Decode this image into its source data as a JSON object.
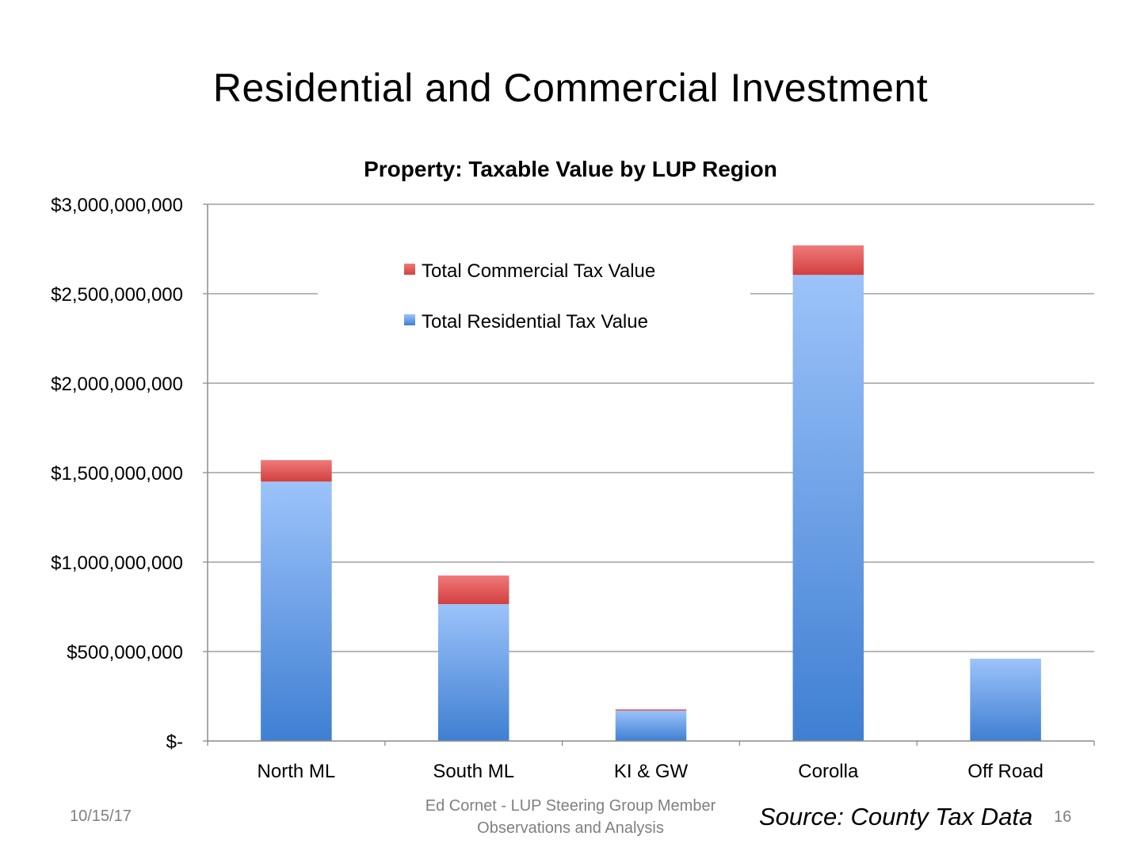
{
  "slide": {
    "title": "Residential and Commercial Investment",
    "date": "10/15/17",
    "author_line1": "Ed Cornet - LUP Steering Group Member",
    "author_line2": "Observations and Analysis",
    "source": "Source: County Tax Data",
    "page_number": "16"
  },
  "chart_data": {
    "type": "bar",
    "stacked": true,
    "title": "Property: Taxable Value by LUP Region",
    "xlabel": "",
    "ylabel": "",
    "categories": [
      "North ML",
      "South ML",
      "KI & GW",
      "Corolla",
      "Off Road"
    ],
    "series": [
      {
        "name": "Total Residential Tax Value",
        "color": "#5b8fd8",
        "values": [
          1450000000,
          765000000,
          170000000,
          2605000000,
          460000000
        ]
      },
      {
        "name": "Total Commercial Tax Value",
        "color": "#e05c5c",
        "values": [
          120000000,
          160000000,
          7000000,
          165000000,
          0
        ]
      }
    ],
    "legend_order": [
      "Total Commercial Tax Value",
      "Total Residential Tax Value"
    ],
    "ylim": [
      0,
      3000000000
    ],
    "yticks": [
      0,
      500000000,
      1000000000,
      1500000000,
      2000000000,
      2500000000,
      3000000000
    ],
    "ytick_labels": [
      "$-",
      "$500,000,000",
      "$1,000,000,000",
      "$1,500,000,000",
      "$2,000,000,000",
      "$2,500,000,000",
      "$3,000,000,000"
    ],
    "grid": true,
    "legend_position": "top-center"
  }
}
